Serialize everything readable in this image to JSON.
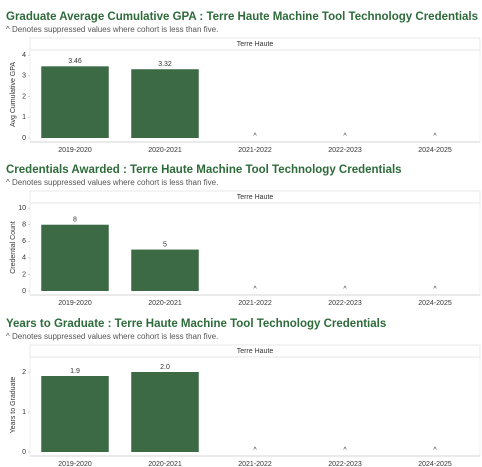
{
  "chart_data": [
    {
      "type": "bar",
      "title": "Graduate Average Cumulative GPA : Terre Haute Machine Tool Technology Credentials",
      "subtitle": "^ Denotes suppressed values where cohort is less than five.",
      "facet": "Terre Haute",
      "y_label": "Avg Cumulative GPA",
      "categories": [
        "2019-2020",
        "2020-2021",
        "2021-2022",
        "2022-2023",
        "2024-2025"
      ],
      "values": [
        3.46,
        3.32,
        null,
        null,
        null
      ],
      "value_labels": [
        "3.46",
        "3.32",
        "^",
        "^",
        "^"
      ],
      "color": "#3b6a45",
      "ylim": [
        0,
        4.2
      ],
      "yticks": [
        0,
        1,
        2,
        3,
        4
      ],
      "grid": false
    },
    {
      "type": "bar",
      "title": "Credentials Awarded : Terre Haute Machine Tool Technology Credentials",
      "subtitle": "^ Denotes suppressed values where cohort is less than five.",
      "facet": "Terre Haute",
      "y_label": "Credential Count",
      "categories": [
        "2019-2020",
        "2020-2021",
        "2021-2022",
        "2022-2023",
        "2024-2025"
      ],
      "values": [
        8,
        5,
        null,
        null,
        null
      ],
      "value_labels": [
        "8",
        "5",
        "^",
        "^",
        "^"
      ],
      "color": "#3b6a45",
      "ylim": [
        0,
        10.5
      ],
      "yticks": [
        0,
        2,
        4,
        6,
        8,
        10
      ],
      "grid": false
    },
    {
      "type": "bar",
      "title": "Years to Graduate : Terre Haute Machine Tool Technology Credentials",
      "subtitle": "^ Denotes suppressed values where cohort is less than five.",
      "facet": "Terre Haute",
      "y_label": "Years to Graduate",
      "categories": [
        "2019-2020",
        "2020-2021",
        "2021-2022",
        "2022-2023",
        "2024-2025"
      ],
      "values": [
        1.9,
        2.0,
        null,
        null,
        null
      ],
      "value_labels": [
        "1.9",
        "2.0",
        "^",
        "^",
        "^"
      ],
      "color": "#3b6a45",
      "ylim": [
        0,
        2.35
      ],
      "yticks": [
        0,
        1,
        2
      ],
      "grid": false
    }
  ]
}
